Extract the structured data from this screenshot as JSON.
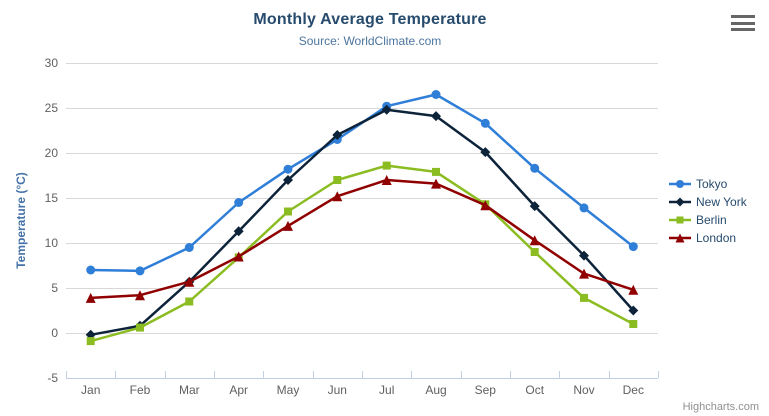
{
  "chart": {
    "title": "Monthly Average Temperature",
    "subtitle": "Source: WorldClimate.com",
    "credits": "Highcharts.com",
    "context_menu_icon": "hamburger-icon"
  },
  "chart_data": {
    "type": "line",
    "title": "Monthly Average Temperature",
    "subtitle": "Source: WorldClimate.com",
    "categories": [
      "Jan",
      "Feb",
      "Mar",
      "Apr",
      "May",
      "Jun",
      "Jul",
      "Aug",
      "Sep",
      "Oct",
      "Nov",
      "Dec"
    ],
    "series": [
      {
        "name": "Tokyo",
        "color": "#2f7ed8",
        "marker": "circle",
        "values": [
          7.0,
          6.9,
          9.5,
          14.5,
          18.2,
          21.5,
          25.2,
          26.5,
          23.3,
          18.3,
          13.9,
          9.6
        ]
      },
      {
        "name": "New York",
        "color": "#0d233a",
        "marker": "diamond",
        "values": [
          -0.2,
          0.8,
          5.7,
          11.3,
          17.0,
          22.0,
          24.8,
          24.1,
          20.1,
          14.1,
          8.6,
          2.5
        ]
      },
      {
        "name": "Berlin",
        "color": "#8bbc21",
        "marker": "square",
        "values": [
          -0.9,
          0.6,
          3.5,
          8.4,
          13.5,
          17.0,
          18.6,
          17.9,
          14.3,
          9.0,
          3.9,
          1.0
        ]
      },
      {
        "name": "London",
        "color": "#910000",
        "marker": "triangle",
        "values": [
          3.9,
          4.2,
          5.7,
          8.5,
          11.9,
          15.2,
          17.0,
          16.6,
          14.2,
          10.3,
          6.6,
          4.8
        ]
      }
    ],
    "xlabel": "",
    "ylabel": "Temperature (°C)",
    "ylim": [
      -5,
      30
    ],
    "ytick_step": 5,
    "grid": true,
    "legend_position": "right"
  },
  "colors": {
    "title": "#274b6d",
    "subtitle": "#4d759e",
    "axis_label": "#606060",
    "yaxis_title": "#4572a7",
    "gridline": "#d8d8d8",
    "axis_line": "#c0d0e0",
    "legend_text": "#274b6d",
    "credits": "#909090",
    "menu_icon": "#666666"
  }
}
